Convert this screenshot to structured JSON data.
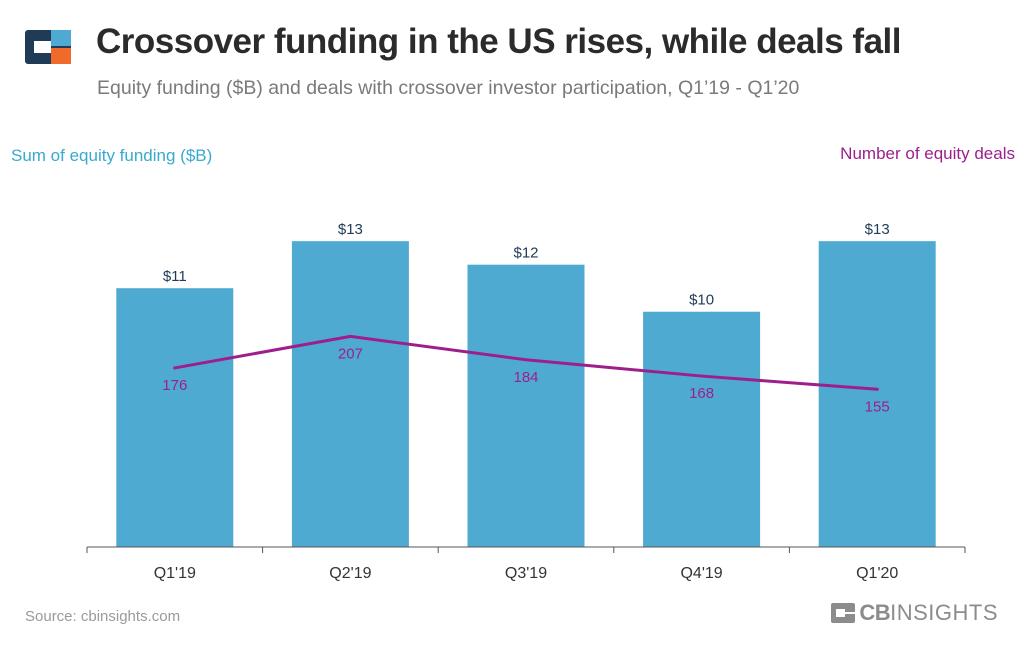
{
  "header": {
    "title": "Crossover funding in the US rises, while deals fall",
    "subtitle": "Equity funding ($B) and deals with crossover investor participation, Q1’19 - Q1’20"
  },
  "axes": {
    "left_label": "Sum of equity funding ($B)",
    "right_label": "Number of equity deals"
  },
  "footer": {
    "source": "Source: cbinsights.com",
    "brand_cb": "CB",
    "brand_insights": "INSIGHTS"
  },
  "colors": {
    "bar": "#4eaad1",
    "line": "#9e1f8c",
    "bar_label": "#1f3b57",
    "line_label": "#9e1f8c",
    "axis": "#555555",
    "tick_label": "#333333"
  },
  "chart_data": {
    "type": "bar",
    "categories": [
      "Q1'19",
      "Q2'19",
      "Q3'19",
      "Q4'19",
      "Q1'20"
    ],
    "series": [
      {
        "name": "Sum of equity funding ($B)",
        "type": "bar",
        "axis": "left",
        "values": [
          11,
          13,
          12,
          10,
          13
        ],
        "labels": [
          "$11",
          "$13",
          "$12",
          "$10",
          "$13"
        ]
      },
      {
        "name": "Number of equity deals",
        "type": "line",
        "axis": "right",
        "values": [
          176,
          207,
          184,
          168,
          155
        ],
        "labels": [
          "176",
          "207",
          "184",
          "168",
          "155"
        ]
      }
    ],
    "left_ylim": [
      0,
      17.3
    ],
    "right_ylim": [
      0,
      400
    ],
    "grid": false,
    "legend": "axis titles top-left and top-right"
  }
}
